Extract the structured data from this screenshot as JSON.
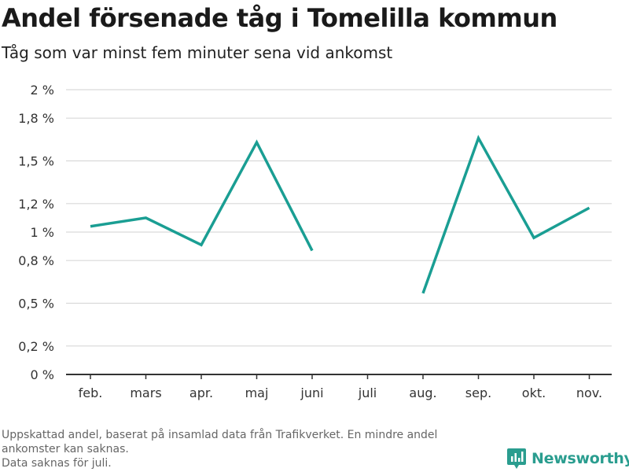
{
  "title": "Andel försenade tåg i Tomelilla kommun",
  "subtitle": "Tåg som var minst fem minuter sena vid ankomst",
  "footnote": [
    "Uppskattad andel, baserat på insamlad data från Trafikverket. En mindre andel",
    "ankomster kan saknas.",
    "Data saknas för juli."
  ],
  "brand": {
    "name": "Newsworthy",
    "icon": "newsworthy-logo-icon",
    "color": "#2a9d8f"
  },
  "chart_data": {
    "type": "line",
    "title": "Andel försenade tåg i Tomelilla kommun",
    "subtitle": "Tåg som var minst fem minuter sena vid ankomst",
    "categories": [
      "feb.",
      "mars",
      "apr.",
      "maj",
      "juni",
      "juli",
      "aug.",
      "sep.",
      "okt.",
      "nov."
    ],
    "series": [
      {
        "values": [
          1.04,
          1.1,
          0.91,
          1.63,
          0.87,
          null,
          0.57,
          1.66,
          0.96,
          1.17
        ],
        "color": "#1a9e93"
      }
    ],
    "yticks": [
      0,
      0.2,
      0.5,
      0.8,
      1,
      1.2,
      1.5,
      1.8,
      2
    ],
    "ytick_labels": [
      "0 %",
      "0,2 %",
      "0,5 %",
      "0,8 %",
      "1 %",
      "1,2 %",
      "1,5 %",
      "1,8 %",
      "2 %"
    ],
    "ylim": [
      0,
      2
    ],
    "grid": true,
    "legend": "none"
  }
}
